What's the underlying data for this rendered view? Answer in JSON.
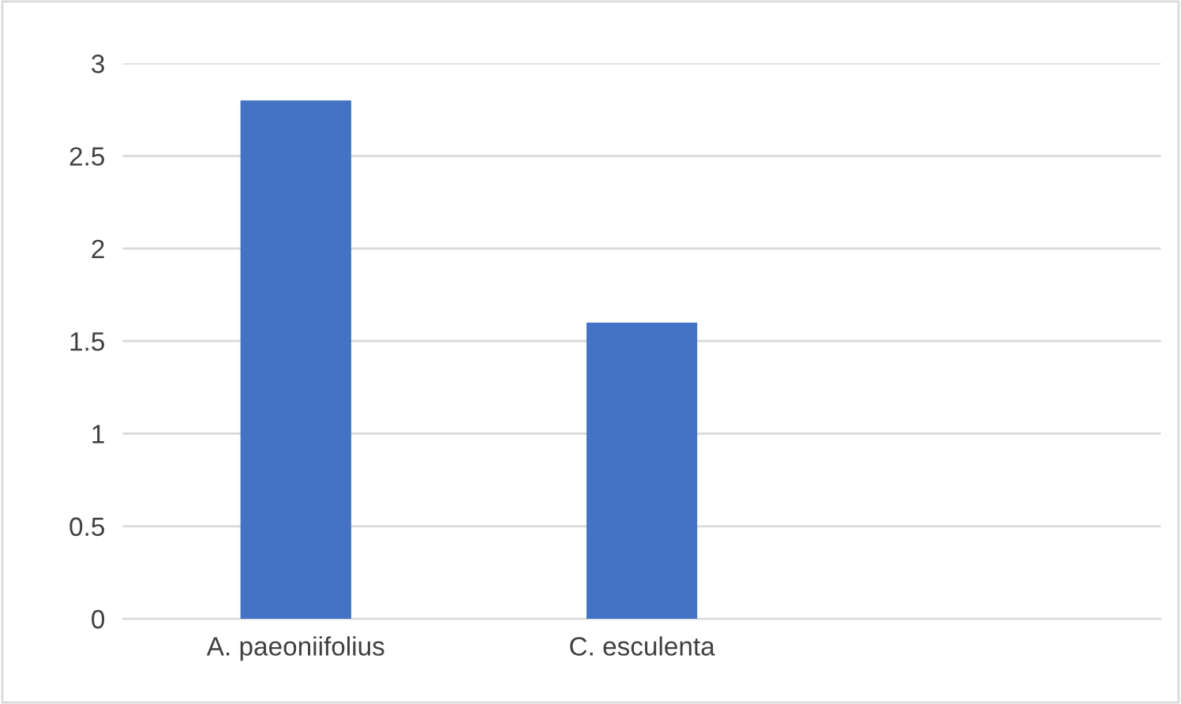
{
  "chart_data": {
    "type": "bar",
    "categories": [
      "A. paeoniifolius",
      "C. esculenta",
      null
    ],
    "values": [
      2.8,
      1.6,
      null
    ],
    "color": "#4472c4",
    "ylim": [
      0,
      3
    ],
    "yticks": [
      0,
      0.5,
      1,
      1.5,
      2,
      2.5,
      3
    ],
    "grid": "y",
    "legend": false
  }
}
